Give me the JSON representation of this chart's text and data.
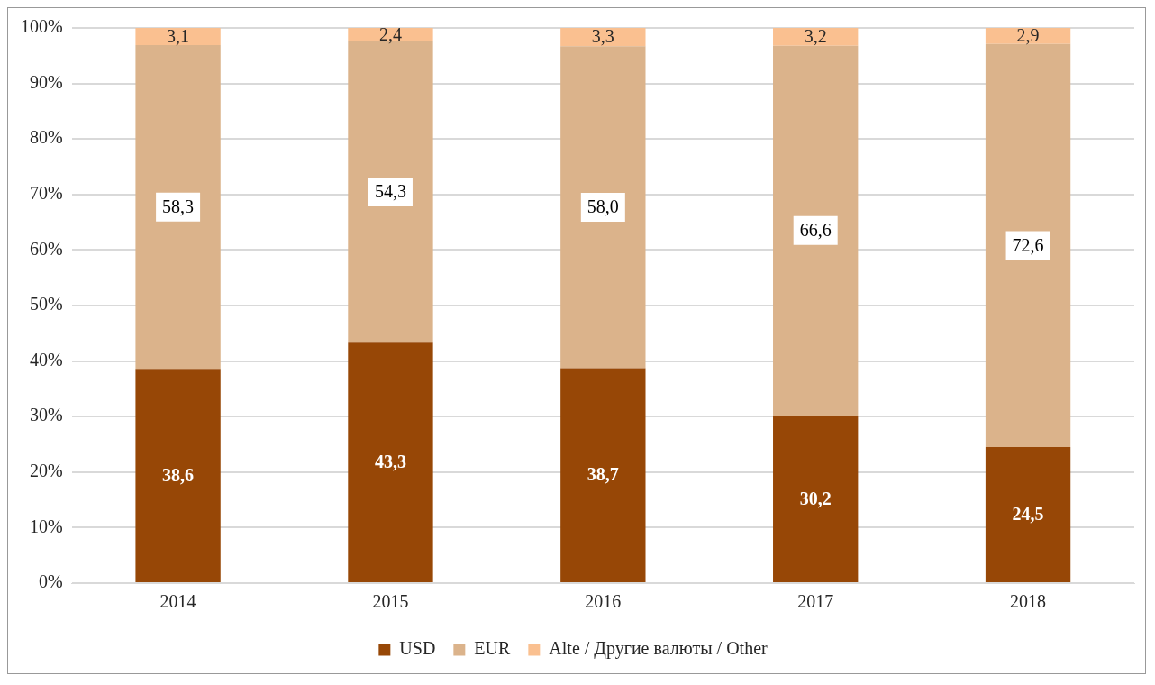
{
  "chart_data": {
    "type": "bar",
    "stacked": true,
    "categories": [
      "2014",
      "2015",
      "2016",
      "2017",
      "2018"
    ],
    "series": [
      {
        "name": "USD",
        "color": "#974706",
        "values": [
          38.6,
          43.3,
          38.7,
          30.2,
          24.5
        ],
        "value_labels": [
          "38,6",
          "43,3",
          "38,7",
          "30,2",
          "24,5"
        ]
      },
      {
        "name": "EUR",
        "color": "#dbb38b",
        "values": [
          58.3,
          54.3,
          58.0,
          66.6,
          72.6
        ],
        "value_labels": [
          "58,3",
          "54,3",
          "58,0",
          "66,6",
          "72,6"
        ]
      },
      {
        "name": "Alte / Другие валюты / Other",
        "color": "#fac090",
        "values": [
          3.1,
          2.4,
          3.3,
          3.2,
          2.9
        ],
        "value_labels": [
          "3,1",
          "2,4",
          "3,3",
          "3,2",
          "2,9"
        ]
      }
    ],
    "ylim": [
      0,
      100
    ],
    "yticks": [
      {
        "value": 0,
        "label": "0%"
      },
      {
        "value": 10,
        "label": "10%"
      },
      {
        "value": 20,
        "label": "20%"
      },
      {
        "value": 30,
        "label": "30%"
      },
      {
        "value": 40,
        "label": "40%"
      },
      {
        "value": 50,
        "label": "50%"
      },
      {
        "value": 60,
        "label": "60%"
      },
      {
        "value": 70,
        "label": "70%"
      },
      {
        "value": 80,
        "label": "80%"
      },
      {
        "value": 90,
        "label": "90%"
      },
      {
        "value": 100,
        "label": "100%"
      }
    ],
    "grid": "y",
    "legend": "bottom"
  }
}
